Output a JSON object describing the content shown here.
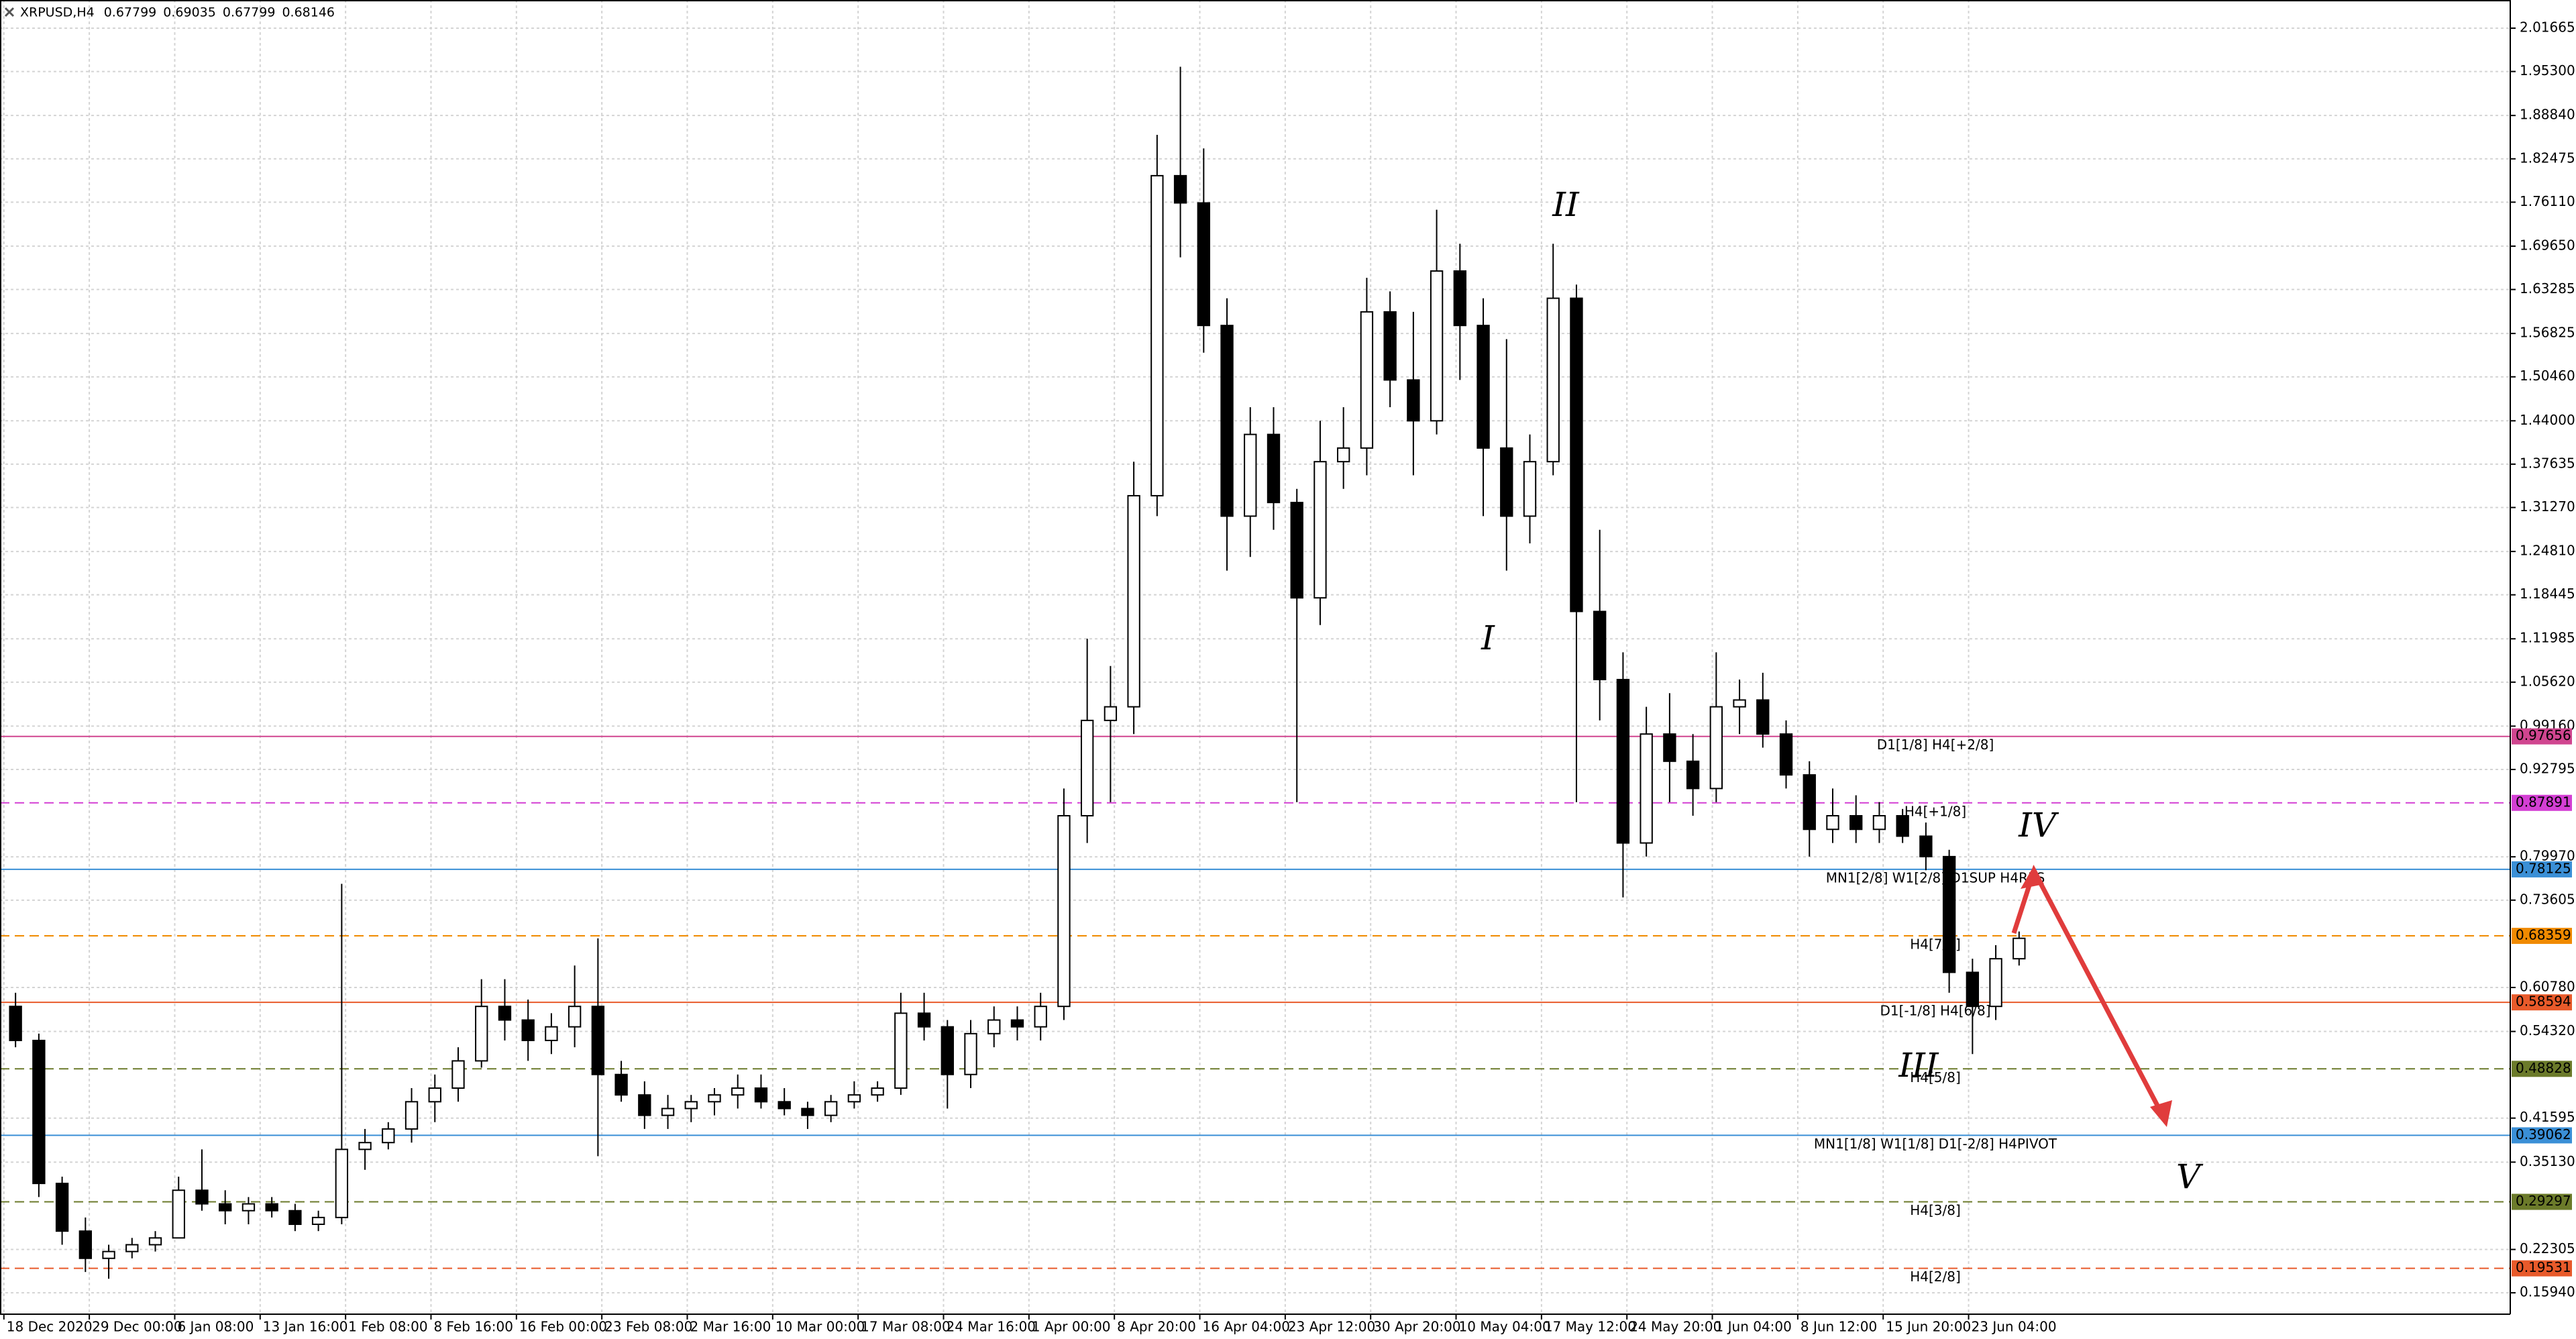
{
  "chart_data": {
    "type": "candlestick",
    "title": "XRPUSD,H4",
    "quote": [
      0.67799,
      0.69035,
      0.67799,
      0.68146
    ],
    "up_color": "#ffffff",
    "down_color": "#000000",
    "grid": true,
    "xlim": [
      -2,
      1291
    ],
    "ylim": [
      0.128,
      2.058
    ],
    "xticks": [
      {
        "value": 0,
        "label": "18 Dec 2020"
      },
      {
        "value": 44,
        "label": "29 Dec 00:00"
      },
      {
        "value": 88,
        "label": "6 Jan 08:00"
      },
      {
        "value": 132,
        "label": "13 Jan 16:00"
      },
      {
        "value": 176,
        "label": "1 Feb 08:00"
      },
      {
        "value": 220,
        "label": "8 Feb 16:00"
      },
      {
        "value": 264,
        "label": "16 Feb 00:00"
      },
      {
        "value": 308,
        "label": "23 Feb 08:00"
      },
      {
        "value": 352,
        "label": "2 Mar 16:00"
      },
      {
        "value": 396,
        "label": "10 Mar 00:00"
      },
      {
        "value": 440,
        "label": "17 Mar 08:00"
      },
      {
        "value": 484,
        "label": "24 Mar 16:00"
      },
      {
        "value": 528,
        "label": "1 Apr 00:00"
      },
      {
        "value": 572,
        "label": "8 Apr 20:00"
      },
      {
        "value": 616,
        "label": "16 Apr 04:00"
      },
      {
        "value": 660,
        "label": "23 Apr 12:00"
      },
      {
        "value": 704,
        "label": "30 Apr 20:00"
      },
      {
        "value": 748,
        "label": "10 May 04:00"
      },
      {
        "value": 792,
        "label": "17 May 12:00"
      },
      {
        "value": 836,
        "label": "24 May 20:00"
      },
      {
        "value": 880,
        "label": "1 Jun 04:00"
      },
      {
        "value": 924,
        "label": "8 Jun 12:00"
      },
      {
        "value": 968,
        "label": "15 Jun 20:00"
      },
      {
        "value": 1012,
        "label": "23 Jun 04:00"
      }
    ],
    "yticks": [
      2.01665,
      {
        "value": 1.953,
        "label": "1.95300"
      },
      {
        "value": 1.8884,
        "label": "1.88840"
      },
      1.82475,
      {
        "value": 1.7611,
        "label": "1.76110"
      },
      {
        "value": 1.6965,
        "label": "1.69650"
      },
      1.63285,
      1.56825,
      {
        "value": 1.5046,
        "label": "1.50460"
      },
      {
        "value": 1.44,
        "label": "1.44000"
      },
      1.37635,
      {
        "value": 1.3127,
        "label": "1.31270"
      },
      {
        "value": 1.2481,
        "label": "1.24810"
      },
      1.18445,
      1.11985,
      {
        "value": 1.0562,
        "label": "1.05620"
      },
      {
        "value": 0.9916,
        "label": "0.99160"
      },
      0.92795,
      {
        "value": 0.7997,
        "label": "0.79970"
      },
      0.73605,
      {
        "value": 0.6078,
        "label": "0.60780"
      },
      {
        "value": 0.5432,
        "label": "0.54320"
      },
      0.41595,
      {
        "value": 0.3513,
        "label": "0.35130"
      },
      0.22305,
      {
        "value": 0.1594,
        "label": "0.15940"
      }
    ],
    "x": [
      6,
      18,
      30,
      42,
      54,
      66,
      78,
      90,
      102,
      114,
      126,
      138,
      150,
      162,
      174,
      186,
      198,
      210,
      222,
      234,
      246,
      258,
      270,
      282,
      294,
      306,
      318,
      330,
      342,
      354,
      366,
      378,
      390,
      402,
      414,
      426,
      438,
      450,
      462,
      474,
      486,
      498,
      510,
      522,
      534,
      546,
      558,
      570,
      582,
      594,
      606,
      618,
      630,
      642,
      654,
      666,
      678,
      690,
      702,
      714,
      726,
      738,
      750,
      762,
      774,
      786,
      798,
      810,
      822,
      834,
      846,
      858,
      870,
      882,
      894,
      906,
      918,
      930,
      942,
      954,
      966,
      978,
      990,
      1002,
      1014,
      1026,
      1038
    ],
    "open": [
      0.58,
      0.53,
      0.32,
      0.25,
      0.21,
      0.22,
      0.23,
      0.24,
      0.31,
      0.29,
      0.28,
      0.29,
      0.28,
      0.26,
      0.27,
      0.37,
      0.38,
      0.4,
      0.44,
      0.46,
      0.5,
      0.58,
      0.56,
      0.53,
      0.55,
      0.58,
      0.48,
      0.45,
      0.42,
      0.43,
      0.44,
      0.45,
      0.46,
      0.44,
      0.43,
      0.42,
      0.44,
      0.45,
      0.46,
      0.57,
      0.55,
      0.48,
      0.54,
      0.56,
      0.55,
      0.58,
      0.86,
      1.0,
      1.02,
      1.33,
      1.8,
      1.76,
      1.58,
      1.3,
      1.42,
      1.32,
      1.18,
      1.38,
      1.4,
      1.6,
      1.5,
      1.44,
      1.66,
      1.58,
      1.4,
      1.3,
      1.38,
      1.62,
      1.16,
      1.06,
      0.82,
      0.98,
      0.94,
      0.9,
      1.02,
      1.03,
      0.98,
      0.92,
      0.84,
      0.86,
      0.84,
      0.86,
      0.83,
      0.8,
      0.63,
      0.58,
      0.65
    ],
    "high": [
      0.6,
      0.54,
      0.33,
      0.27,
      0.23,
      0.24,
      0.25,
      0.33,
      0.37,
      0.31,
      0.3,
      0.3,
      0.29,
      0.28,
      0.76,
      0.4,
      0.41,
      0.46,
      0.48,
      0.52,
      0.62,
      0.62,
      0.59,
      0.57,
      0.64,
      0.68,
      0.5,
      0.47,
      0.45,
      0.45,
      0.46,
      0.48,
      0.48,
      0.46,
      0.44,
      0.45,
      0.47,
      0.47,
      0.6,
      0.6,
      0.56,
      0.56,
      0.58,
      0.58,
      0.6,
      0.9,
      1.12,
      1.08,
      1.38,
      1.86,
      1.96,
      1.84,
      1.62,
      1.46,
      1.46,
      1.34,
      1.44,
      1.46,
      1.65,
      1.63,
      1.6,
      1.75,
      1.7,
      1.62,
      1.56,
      1.42,
      1.7,
      1.64,
      1.28,
      1.1,
      1.02,
      1.04,
      0.98,
      1.1,
      1.06,
      1.07,
      1.0,
      0.94,
      0.9,
      0.89,
      0.88,
      0.87,
      0.85,
      0.81,
      0.65,
      0.67,
      0.69
    ],
    "low": [
      0.52,
      0.3,
      0.23,
      0.19,
      0.18,
      0.21,
      0.22,
      0.24,
      0.28,
      0.26,
      0.26,
      0.27,
      0.25,
      0.25,
      0.26,
      0.34,
      0.37,
      0.38,
      0.41,
      0.44,
      0.49,
      0.53,
      0.5,
      0.51,
      0.52,
      0.36,
      0.44,
      0.4,
      0.4,
      0.41,
      0.42,
      0.43,
      0.43,
      0.42,
      0.4,
      0.41,
      0.43,
      0.44,
      0.45,
      0.53,
      0.43,
      0.46,
      0.52,
      0.53,
      0.53,
      0.56,
      0.82,
      0.88,
      0.98,
      1.3,
      1.68,
      1.54,
      1.22,
      1.24,
      1.28,
      0.88,
      1.14,
      1.34,
      1.36,
      1.46,
      1.36,
      1.42,
      1.5,
      1.3,
      1.22,
      1.26,
      1.36,
      0.88,
      1.0,
      0.74,
      0.8,
      0.88,
      0.86,
      0.88,
      0.98,
      0.96,
      0.9,
      0.8,
      0.82,
      0.82,
      0.82,
      0.82,
      0.78,
      0.6,
      0.51,
      0.56,
      0.64
    ],
    "close": [
      0.53,
      0.32,
      0.25,
      0.21,
      0.22,
      0.23,
      0.24,
      0.31,
      0.29,
      0.28,
      0.29,
      0.28,
      0.26,
      0.27,
      0.37,
      0.38,
      0.4,
      0.44,
      0.46,
      0.5,
      0.58,
      0.56,
      0.53,
      0.55,
      0.58,
      0.48,
      0.45,
      0.42,
      0.43,
      0.44,
      0.45,
      0.46,
      0.44,
      0.43,
      0.42,
      0.44,
      0.45,
      0.46,
      0.57,
      0.55,
      0.48,
      0.54,
      0.56,
      0.55,
      0.58,
      0.86,
      1.0,
      1.02,
      1.33,
      1.8,
      1.76,
      1.58,
      1.3,
      1.42,
      1.32,
      1.18,
      1.38,
      1.4,
      1.6,
      1.5,
      1.44,
      1.66,
      1.58,
      1.4,
      1.3,
      1.38,
      1.62,
      1.16,
      1.06,
      0.82,
      0.98,
      0.94,
      0.9,
      1.02,
      1.03,
      0.98,
      0.92,
      0.84,
      0.86,
      0.84,
      0.86,
      0.83,
      0.8,
      0.63,
      0.58,
      0.65,
      0.68
    ],
    "levels": [
      {
        "label": "D1[1/8] H4[+2/8]",
        "value": 0.97656,
        "color": "#d0458f",
        "dash": false
      },
      {
        "label": "H4[+1/8]",
        "value": 0.87891,
        "color": "#d43fd4",
        "dash": true
      },
      {
        "label": "MN1[2/8] W1[2/8] D1SUP H4RES",
        "value": 0.78125,
        "color": "#3a8fd6",
        "dash": false
      },
      {
        "label": "H4[7/8]",
        "value": 0.68359,
        "color": "#f08a00",
        "dash": true
      },
      {
        "label": "D1[-1/8] H4[6/8]",
        "value": 0.58594,
        "color": "#e85a2a",
        "dash": false
      },
      {
        "label": "H4[5/8]",
        "value": 0.48828,
        "color": "#6b7a2a",
        "dash": true
      },
      {
        "label": "MN1[1/8] W1[1/8] D1[-2/8] H4PIVOT",
        "value": 0.39062,
        "color": "#3a8fd6",
        "dash": false
      },
      {
        "label": "H4[3/8]",
        "value": 0.29297,
        "color": "#6b7a2a",
        "dash": true
      },
      {
        "label": "H4[2/8]",
        "value": 0.19531,
        "color": "#e85a2a",
        "dash": true
      }
    ],
    "annotations": [
      "I",
      "II",
      "III",
      "IV",
      "V"
    ]
  }
}
